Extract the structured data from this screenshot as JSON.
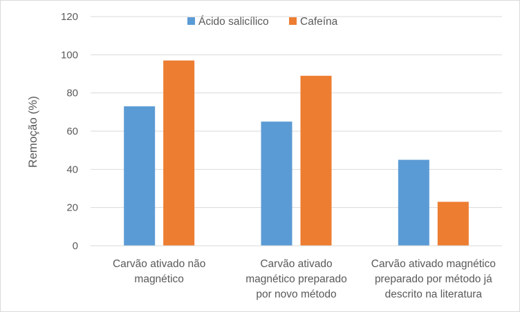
{
  "chart_data": {
    "type": "bar",
    "title": "",
    "xlabel": "",
    "ylabel": "Remoção (%)",
    "ylim": [
      0,
      120
    ],
    "yticks": [
      0,
      20,
      40,
      60,
      80,
      100,
      120
    ],
    "grid": true,
    "legend_position": "top-center",
    "categories": [
      [
        "Carvão ativado não",
        "magnético"
      ],
      [
        "Carvão ativado",
        "magnético preparado",
        "por novo método"
      ],
      [
        "Carvão ativado magnético",
        "preparado por método já",
        "descrito na literatura"
      ]
    ],
    "series": [
      {
        "name": "Ácido salicílico",
        "color": "#5B9BD5",
        "values": [
          73,
          65,
          45
        ]
      },
      {
        "name": "Cafeína",
        "color": "#ED7D31",
        "values": [
          97,
          89,
          23
        ]
      }
    ]
  }
}
